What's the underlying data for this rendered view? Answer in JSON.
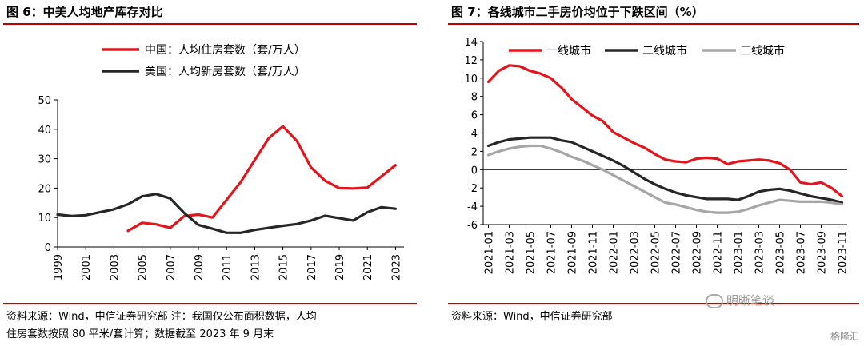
{
  "left": {
    "title": "图 6：中美人均地产库存对比",
    "source": [
      "资料来源：Wind，中信证券研究部 注：我国仅公布面积数据，人均",
      "住房套数按照 80 平米/套计算；数据截至 2023 年 9 月末"
    ],
    "chart_data": {
      "type": "line",
      "title": "",
      "xlabel": "",
      "ylabel": "",
      "ylim": [
        0,
        50
      ],
      "yticks": [
        "0",
        "10",
        "20",
        "30",
        "40",
        "50"
      ],
      "xlim": [
        1999,
        2023.6
      ],
      "xticks": [
        "1999",
        "2001",
        "2003",
        "2005",
        "2007",
        "2009",
        "2011",
        "2013",
        "2015",
        "2017",
        "2019",
        "2021",
        "2023"
      ],
      "legend_position": "top",
      "grid": false,
      "series": [
        {
          "name": "中国：人均住房套数（套/万人）",
          "color": "#e3141c",
          "x": [
            2004,
            2005,
            2006,
            2007,
            2008,
            2009,
            2010,
            2011,
            2012,
            2013,
            2014,
            2015,
            2016,
            2017,
            2018,
            2019,
            2020,
            2021,
            2022,
            2023
          ],
          "y": [
            5.5,
            8.2,
            7.7,
            6.5,
            10.5,
            11.0,
            10.0,
            16.0,
            22.0,
            29.5,
            37.0,
            41.0,
            36.0,
            27.0,
            22.5,
            20.0,
            19.9,
            20.2,
            24.0,
            27.8
          ]
        },
        {
          "name": "美国：人均新房套数（套/万人）",
          "color": "#262626",
          "x": [
            1999,
            2000,
            2001,
            2002,
            2003,
            2004,
            2005,
            2006,
            2007,
            2008,
            2009,
            2010,
            2011,
            2012,
            2013,
            2014,
            2015,
            2016,
            2017,
            2018,
            2019,
            2020,
            2021,
            2022,
            2023
          ],
          "y": [
            11.0,
            10.5,
            10.8,
            11.8,
            12.8,
            14.5,
            17.2,
            18.0,
            16.5,
            11.5,
            7.5,
            6.2,
            4.8,
            4.8,
            5.8,
            6.5,
            7.2,
            7.8,
            9.0,
            10.6,
            9.8,
            9.0,
            11.8,
            13.5,
            13.0
          ]
        }
      ]
    }
  },
  "right": {
    "title": "图 7：各线城市二手房价均位于下跌区间（%）",
    "source": "资料来源：Wind，中信证券研究部",
    "chart_data": {
      "type": "line",
      "title": "",
      "xlabel": "",
      "ylabel": "",
      "ylim": [
        -6,
        14
      ],
      "yticks": [
        "-6",
        "-4",
        "-2",
        "0",
        "2",
        "4",
        "6",
        "8",
        "10",
        "12",
        "14"
      ],
      "xticks": [
        "2021-01",
        "2021-03",
        "2021-05",
        "2021-07",
        "2021-09",
        "2021-11",
        "2022-01",
        "2022-03",
        "2022-05",
        "2022-07",
        "2022-09",
        "2022-11",
        "2023-01",
        "2023-03",
        "2023-05",
        "2023-07",
        "2023-09",
        "2023-11"
      ],
      "x": [
        "2021-01",
        "2021-02",
        "2021-03",
        "2021-04",
        "2021-05",
        "2021-06",
        "2021-07",
        "2021-08",
        "2021-09",
        "2021-10",
        "2021-11",
        "2021-12",
        "2022-01",
        "2022-02",
        "2022-03",
        "2022-04",
        "2022-05",
        "2022-06",
        "2022-07",
        "2022-08",
        "2022-09",
        "2022-10",
        "2022-11",
        "2022-12",
        "2023-01",
        "2023-02",
        "2023-03",
        "2023-04",
        "2023-05",
        "2023-06",
        "2023-07",
        "2023-08",
        "2023-09",
        "2023-10",
        "2023-11"
      ],
      "legend_position": "top",
      "grid": false,
      "series": [
        {
          "name": "一线城市",
          "color": "#e3141c",
          "values": [
            9.6,
            10.8,
            11.4,
            11.3,
            10.8,
            10.5,
            10.0,
            9.0,
            7.7,
            6.8,
            5.9,
            5.3,
            4.1,
            3.5,
            2.9,
            2.4,
            1.7,
            1.1,
            0.9,
            0.8,
            1.2,
            1.3,
            1.2,
            0.6,
            0.9,
            1.0,
            1.1,
            1.0,
            0.7,
            0.0,
            -1.4,
            -1.6,
            -1.4,
            -2.0,
            -2.9
          ]
        },
        {
          "name": "二线城市",
          "color": "#262626",
          "values": [
            2.6,
            3.0,
            3.3,
            3.4,
            3.5,
            3.5,
            3.5,
            3.2,
            3.0,
            2.5,
            2.0,
            1.5,
            1.0,
            0.4,
            -0.3,
            -1.0,
            -1.6,
            -2.1,
            -2.5,
            -2.8,
            -3.0,
            -3.2,
            -3.2,
            -3.2,
            -3.3,
            -2.9,
            -2.4,
            -2.2,
            -2.1,
            -2.3,
            -2.6,
            -2.9,
            -3.1,
            -3.3,
            -3.6
          ]
        },
        {
          "name": "三线城市",
          "color": "#a6a6a6",
          "values": [
            1.6,
            2.0,
            2.3,
            2.5,
            2.6,
            2.6,
            2.3,
            1.9,
            1.4,
            1.0,
            0.5,
            0.0,
            -0.6,
            -1.2,
            -1.8,
            -2.4,
            -3.0,
            -3.6,
            -3.8,
            -4.1,
            -4.4,
            -4.6,
            -4.7,
            -4.7,
            -4.6,
            -4.3,
            -3.9,
            -3.6,
            -3.3,
            -3.4,
            -3.5,
            -3.5,
            -3.5,
            -3.6,
            -3.8
          ]
        }
      ]
    }
  },
  "watermark": "明晰笔谈",
  "badge": "格隆汇"
}
